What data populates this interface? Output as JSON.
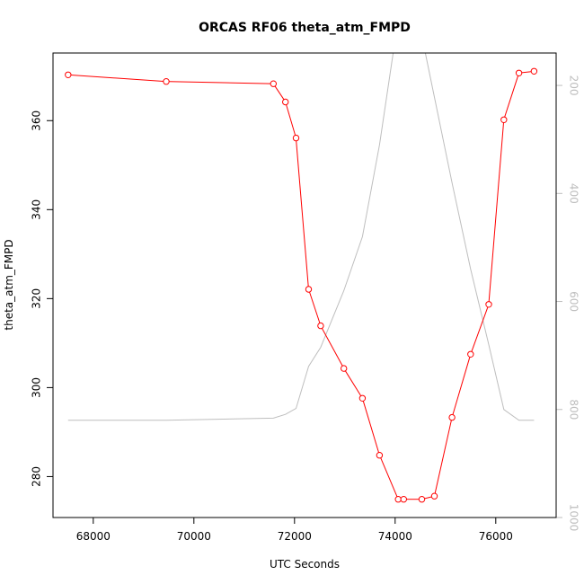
{
  "chart_data": {
    "type": "line",
    "title": "ORCAS RF06 theta_atm_FMPD",
    "xlabel": "UTC Seconds",
    "ylabel": "theta_atm_FMPD",
    "xlim": [
      67200,
      77200
    ],
    "ylim": [
      270.8,
      375.2
    ],
    "xticks": [
      68000,
      70000,
      72000,
      74000,
      76000
    ],
    "xtick_labels": [
      "68000",
      "70000",
      "72000",
      "74000",
      "76000"
    ],
    "yticks": [
      280,
      300,
      320,
      340,
      360
    ],
    "ytick_labels": [
      "280",
      "300",
      "320",
      "340",
      "360"
    ],
    "y2lim": [
      1000,
      140
    ],
    "y2ticks": [
      200,
      400,
      600,
      800,
      1000
    ],
    "y2tick_labels": [
      "200",
      "400",
      "600",
      "800",
      "1000"
    ],
    "grid": false,
    "series": [
      {
        "axis": "left",
        "color": "#ff0000",
        "marker": "open-circle",
        "x": [
          67500,
          69450,
          71580,
          71820,
          72030,
          72280,
          72520,
          72980,
          73350,
          73690,
          74060,
          74170,
          74530,
          74780,
          75130,
          75500,
          75860,
          76160,
          76460,
          76760
        ],
        "y": [
          370.3,
          368.8,
          368.3,
          364.2,
          356.1,
          322.1,
          313.9,
          304.3,
          297.6,
          284.8,
          274.9,
          274.9,
          274.9,
          275.6,
          293.3,
          307.5,
          318.7,
          360.2,
          370.7,
          371.1
        ]
      },
      {
        "axis": "right",
        "color": "#bebebe",
        "marker": "none",
        "x": [
          67500,
          69450,
          71580,
          71820,
          72030,
          72280,
          72520,
          72980,
          73350,
          73690,
          73960,
          74600,
          75130,
          75500,
          75860,
          76160,
          76460,
          76760
        ],
        "y": [
          820,
          820,
          816,
          809,
          798,
          720,
          685,
          580,
          480,
          310,
          120,
          120,
          380,
          540,
          680,
          800,
          820,
          820
        ]
      }
    ]
  }
}
